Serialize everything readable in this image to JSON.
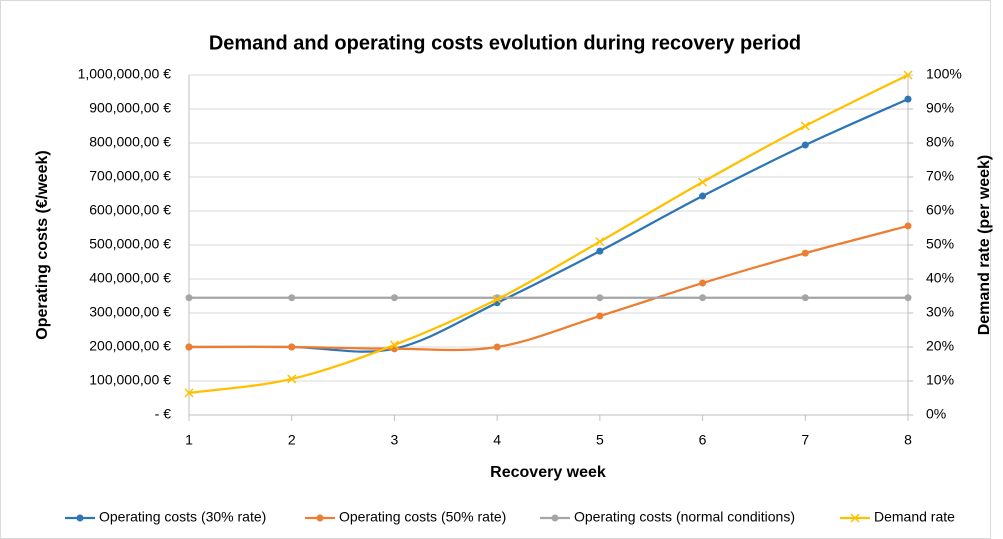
{
  "chart_data": {
    "type": "line",
    "title": "Demand and operating costs evolution during recovery period",
    "x_label": "Recovery week",
    "y_label": "Operating costs (€/week)",
    "y2_label": "Demand rate (per week)",
    "x": [
      1,
      2,
      3,
      4,
      5,
      6,
      7,
      8
    ],
    "xlim": [
      1,
      8
    ],
    "xticks": [
      1,
      2,
      3,
      4,
      5,
      6,
      7,
      8
    ],
    "ylim": [
      0,
      1000000
    ],
    "yticks": [
      {
        "value": 0,
        "label": "-  €"
      },
      {
        "value": 100000,
        "label": "100,000,00 €"
      },
      {
        "value": 200000,
        "label": "200,000,00 €"
      },
      {
        "value": 300000,
        "label": "300,000,00 €"
      },
      {
        "value": 400000,
        "label": "400,000,00 €"
      },
      {
        "value": 500000,
        "label": "500,000,00 €"
      },
      {
        "value": 600000,
        "label": "600,000,00 €"
      },
      {
        "value": 700000,
        "label": "700,000,00 €"
      },
      {
        "value": 800000,
        "label": "800,000,00 €"
      },
      {
        "value": 900000,
        "label": "900,000,00 €"
      },
      {
        "value": 1000000,
        "label": "1,000,000,00 €"
      }
    ],
    "y2lim": [
      0,
      100
    ],
    "y2ticks": [
      {
        "value": 0,
        "label": "0%"
      },
      {
        "value": 10,
        "label": "10%"
      },
      {
        "value": 20,
        "label": "20%"
      },
      {
        "value": 30,
        "label": "30%"
      },
      {
        "value": 40,
        "label": "40%"
      },
      {
        "value": 50,
        "label": "50%"
      },
      {
        "value": 60,
        "label": "60%"
      },
      {
        "value": 70,
        "label": "70%"
      },
      {
        "value": 80,
        "label": "80%"
      },
      {
        "value": 90,
        "label": "90%"
      },
      {
        "value": 100,
        "label": "100%"
      }
    ],
    "grid": true,
    "legend": "bottom",
    "series": [
      {
        "name": "Operating costs (30% rate)",
        "color": "#2e75b6",
        "marker": "dot",
        "values": [
          200000,
          200000,
          195000,
          330000,
          482000,
          644000,
          794000,
          929000
        ]
      },
      {
        "name": "Operating costs (50% rate)",
        "color": "#ed7d31",
        "marker": "dot",
        "values": [
          200000,
          200000,
          195000,
          200000,
          291000,
          388000,
          476000,
          556000
        ]
      },
      {
        "name": "Operating costs (normal conditions)",
        "color": "#a5a5a5",
        "marker": "dot",
        "values": [
          345000,
          345000,
          345000,
          345000,
          345000,
          345000,
          345000,
          345000
        ]
      },
      {
        "name": "Demand rate",
        "color": "#ffc000",
        "marker": "x",
        "axis": "y2",
        "values": [
          6.5,
          10.6,
          20.6,
          34,
          51,
          68.5,
          85,
          100
        ]
      }
    ]
  }
}
